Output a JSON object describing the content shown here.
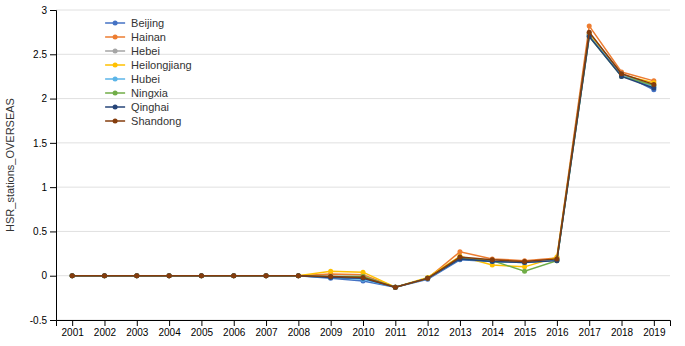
{
  "chart_data": {
    "type": "line",
    "ylabel": "HSR_stations_OVERSEAS",
    "x": [
      2001,
      2002,
      2003,
      2004,
      2005,
      2006,
      2007,
      2008,
      2009,
      2010,
      2011,
      2012,
      2013,
      2014,
      2015,
      2016,
      2017,
      2018,
      2019
    ],
    "series": [
      {
        "name": "Beijing",
        "color": "#4472C4",
        "values": [
          0,
          0,
          0,
          0,
          0,
          0,
          0,
          0,
          -0.03,
          -0.06,
          -0.13,
          -0.04,
          0.18,
          0.16,
          0.15,
          0.18,
          2.72,
          2.28,
          2.1
        ]
      },
      {
        "name": "Hainan",
        "color": "#ED7D31",
        "values": [
          0,
          0,
          0,
          0,
          0,
          0,
          0,
          0,
          0.02,
          0.01,
          -0.13,
          -0.03,
          0.27,
          0.19,
          0.17,
          0.2,
          2.82,
          2.3,
          2.2
        ]
      },
      {
        "name": "Hebei",
        "color": "#A5A5A5",
        "values": [
          0,
          0,
          0,
          0,
          0,
          0,
          0,
          0,
          -0.01,
          -0.01,
          -0.13,
          -0.03,
          0.2,
          0.17,
          0.15,
          0.18,
          2.74,
          2.28,
          2.14
        ]
      },
      {
        "name": "Heilongjiang",
        "color": "#FFC000",
        "values": [
          0,
          0,
          0,
          0,
          0,
          0,
          0,
          0,
          0.05,
          0.04,
          -0.13,
          -0.02,
          0.22,
          0.12,
          0.1,
          0.21,
          2.73,
          2.27,
          2.18
        ]
      },
      {
        "name": "Hubei",
        "color": "#5BB5E8",
        "values": [
          0,
          0,
          0,
          0,
          0,
          0,
          0,
          0,
          -0.02,
          -0.04,
          -0.13,
          -0.03,
          0.19,
          0.16,
          0.15,
          0.18,
          2.71,
          2.27,
          2.13
        ]
      },
      {
        "name": "Ningxia",
        "color": "#70AD47",
        "values": [
          0,
          0,
          0,
          0,
          0,
          0,
          0,
          0,
          -0.01,
          -0.01,
          -0.13,
          -0.03,
          0.2,
          0.17,
          0.05,
          0.17,
          2.7,
          2.25,
          2.15
        ]
      },
      {
        "name": "Qinghai",
        "color": "#264478",
        "values": [
          0,
          0,
          0,
          0,
          0,
          0,
          0,
          0,
          -0.02,
          -0.03,
          -0.13,
          -0.03,
          0.19,
          0.16,
          0.15,
          0.17,
          2.7,
          2.25,
          2.12
        ]
      },
      {
        "name": "Shandong",
        "color": "#843C0C",
        "values": [
          0,
          0,
          0,
          0,
          0,
          0,
          0,
          0,
          -0.01,
          -0.02,
          -0.13,
          -0.03,
          0.21,
          0.18,
          0.16,
          0.19,
          2.75,
          2.28,
          2.16
        ]
      }
    ],
    "xlim": [
      2000.5,
      2019.5
    ],
    "xticks": [
      2001,
      2002,
      2003,
      2004,
      2005,
      2006,
      2007,
      2008,
      2009,
      2010,
      2011,
      2012,
      2013,
      2014,
      2015,
      2016,
      2017,
      2018,
      2019
    ],
    "ylim": [
      -0.5,
      3.0
    ],
    "yticks": [
      -0.5,
      0,
      0.5,
      1,
      1.5,
      2,
      2.5,
      3
    ],
    "grid": "y",
    "legend": "upper left",
    "marker": "circle"
  }
}
